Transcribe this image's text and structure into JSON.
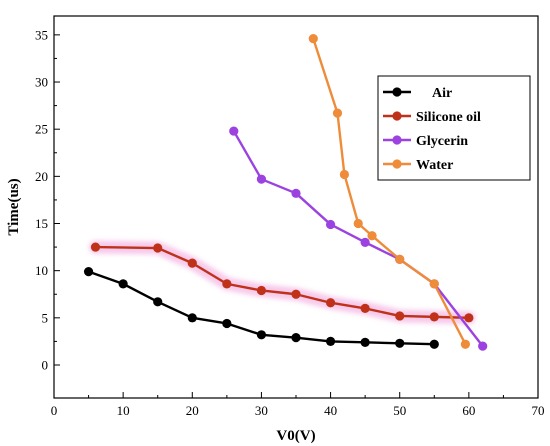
{
  "chart_data": {
    "type": "line",
    "xlabel": "V0(V)",
    "ylabel": "Time(us)",
    "xlim": [
      0,
      70
    ],
    "ylim": [
      -3.5,
      37
    ],
    "xticks": [
      0,
      10,
      20,
      30,
      40,
      50,
      60,
      70
    ],
    "yticks": [
      0,
      5,
      10,
      15,
      20,
      25,
      30,
      35
    ],
    "grid": false,
    "legend_position": "top-right",
    "series": [
      {
        "name": "Air",
        "color": "#000000",
        "x": [
          5,
          10,
          15,
          20,
          25,
          30,
          35,
          40,
          45,
          50,
          55
        ],
        "y": [
          9.9,
          8.6,
          6.7,
          5.0,
          4.4,
          3.2,
          2.9,
          2.5,
          2.4,
          2.3,
          2.2
        ]
      },
      {
        "name": "Silicone oil",
        "color": "#c0311a",
        "x": [
          6,
          15,
          20,
          25,
          30,
          35,
          40,
          45,
          50,
          55,
          60
        ],
        "y": [
          12.5,
          12.4,
          10.8,
          8.6,
          7.9,
          7.5,
          6.6,
          6.0,
          5.2,
          5.1,
          5.0
        ]
      },
      {
        "name": "Glycerin",
        "color": "#9b42e0",
        "x": [
          26,
          30,
          35,
          40,
          45,
          50,
          55,
          62
        ],
        "y": [
          24.8,
          19.7,
          18.2,
          14.9,
          13.0,
          11.2,
          8.6,
          2.0
        ]
      },
      {
        "name": "Water",
        "color": "#ee8c3a",
        "x": [
          37.5,
          41,
          42,
          44,
          46,
          50,
          55,
          59.5
        ],
        "y": [
          34.6,
          26.7,
          20.2,
          15.0,
          13.7,
          11.2,
          8.6,
          2.2
        ]
      }
    ]
  }
}
